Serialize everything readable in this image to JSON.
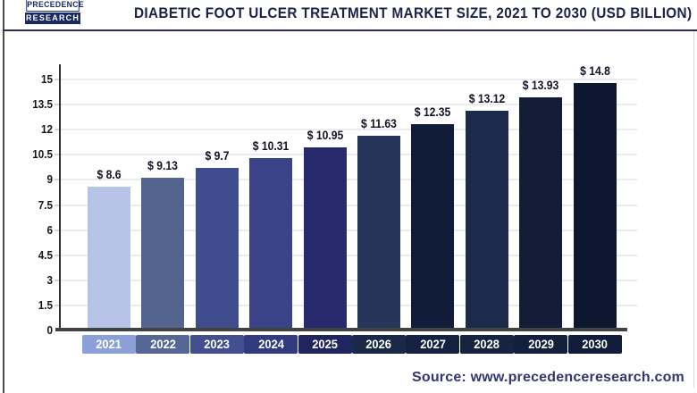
{
  "header": {
    "logo": {
      "line1": "PRECEDENCE",
      "line2": "RESEARCH"
    },
    "title": "DIABETIC FOOT ULCER TREATMENT MARKET SIZE, 2021 TO 2030 (USD BILLION)"
  },
  "chart_data": {
    "type": "bar",
    "title": "Diabetic Foot Ulcer Treatment Market Size, 2021 to 2030 (USD Billion)",
    "unit": "USD Billion",
    "categories": [
      "2021",
      "2022",
      "2023",
      "2024",
      "2025",
      "2026",
      "2027",
      "2028",
      "2029",
      "2030"
    ],
    "values": [
      8.6,
      9.13,
      9.7,
      10.31,
      10.95,
      11.63,
      12.35,
      13.12,
      13.93,
      14.8
    ],
    "value_labels": [
      "$ 8.6",
      "$ 9.13",
      "$ 9.7",
      "$ 10.31",
      "$ 10.95",
      "$ 11.63",
      "$ 12.35",
      "$ 13.12",
      "$ 13.93",
      "$ 14.8"
    ],
    "ylim": [
      0,
      15
    ],
    "y_step": 1.5,
    "y_tick_labels": [
      "0",
      "1.5",
      "3",
      "4.5",
      "6",
      "7.5",
      "9",
      "10.5",
      "12",
      "13.5",
      "15"
    ],
    "grid": true,
    "legend": "none",
    "bar_colors": [
      "#b8c3e8",
      "#53648f",
      "#3f4c8e",
      "#3a4288",
      "#262a6c",
      "#273459",
      "#101c3a",
      "#1c2a4b",
      "#131d38",
      "#0e1730"
    ],
    "year_box_colors": [
      "#8ba0d8",
      "#566795",
      "#434f8e",
      "#333b80",
      "#20255f",
      "#1b2949",
      "#152141",
      "#162441",
      "#13203d",
      "#111d3a"
    ],
    "axis_color": "#424242",
    "grid_color": "#ececee"
  },
  "footer": {
    "source": "Source: www.precedenceresearch.com"
  }
}
